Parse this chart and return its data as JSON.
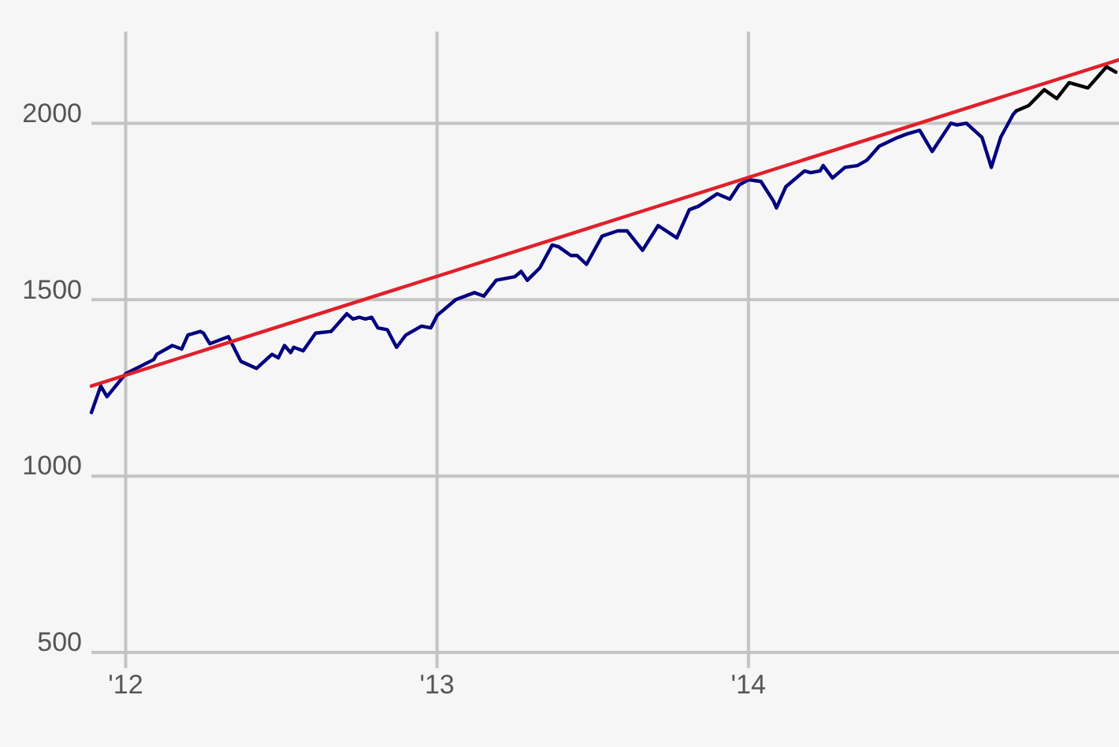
{
  "chart_data": {
    "type": "line",
    "grid": true,
    "xlim": [
      2011.89,
      2015.19
    ],
    "ylim": [
      500,
      2260
    ],
    "xticks": [
      {
        "value": 2012,
        "label": "'12"
      },
      {
        "value": 2013,
        "label": "'13"
      },
      {
        "value": 2014,
        "label": "'14"
      }
    ],
    "yticks": [
      500,
      1000,
      1500,
      2000
    ],
    "series": [
      {
        "color": "#000080",
        "x": [
          2011.89,
          2011.92,
          2011.94,
          2012.0,
          2012.09,
          2012.1,
          2012.15,
          2012.18,
          2012.2,
          2012.24,
          2012.25,
          2012.27,
          2012.33,
          2012.37,
          2012.42,
          2012.47,
          2012.49,
          2012.51,
          2012.53,
          2012.54,
          2012.57,
          2012.61,
          2012.66,
          2012.67,
          2012.71,
          2012.73,
          2012.75,
          2012.77,
          2012.79,
          2012.81,
          2012.84,
          2012.87,
          2012.9,
          2012.93,
          2012.95,
          2012.98,
          2013.0,
          2013.06,
          2013.12,
          2013.15,
          2013.19,
          2013.22,
          2013.25,
          2013.27,
          2013.29,
          2013.33,
          2013.37,
          2013.39,
          2013.43,
          2013.45,
          2013.48,
          2013.53,
          2013.58,
          2013.61,
          2013.66,
          2013.71,
          2013.77,
          2013.81,
          2013.84,
          2013.9,
          2013.94,
          2013.97,
          2014.0,
          2014.04,
          2014.08,
          2014.09,
          2014.12,
          2014.18,
          2014.2,
          2014.23,
          2014.24,
          2014.27,
          2014.31,
          2014.35,
          2014.38,
          2014.42,
          2014.48,
          2014.51,
          2014.55,
          2014.59,
          2014.65,
          2014.67,
          2014.7,
          2014.75,
          2014.78,
          2014.81,
          2014.85,
          2014.86
        ],
        "values": [
          1180,
          1255,
          1225,
          1290,
          1330,
          1345,
          1370,
          1360,
          1400,
          1410,
          1405,
          1375,
          1395,
          1325,
          1305,
          1345,
          1335,
          1370,
          1350,
          1365,
          1355,
          1405,
          1410,
          1420,
          1460,
          1445,
          1450,
          1445,
          1450,
          1420,
          1415,
          1365,
          1400,
          1415,
          1425,
          1420,
          1455,
          1500,
          1520,
          1510,
          1555,
          1560,
          1565,
          1580,
          1555,
          1590,
          1655,
          1650,
          1625,
          1625,
          1600,
          1680,
          1695,
          1695,
          1640,
          1710,
          1675,
          1755,
          1765,
          1800,
          1785,
          1825,
          1840,
          1835,
          1780,
          1760,
          1820,
          1865,
          1860,
          1865,
          1880,
          1845,
          1875,
          1880,
          1895,
          1935,
          1960,
          1970,
          1980,
          1920,
          2000,
          1995,
          2000,
          1960,
          1875,
          1960,
          2025,
          2035
        ]
      },
      {
        "color": "#000000",
        "x": [
          2014.86,
          2014.9,
          2014.95,
          2014.99,
          2015.03,
          2015.09,
          2015.13,
          2015.15,
          2015.18
        ],
        "values": [
          2035,
          2050,
          2095,
          2070,
          2115,
          2100,
          2140,
          2160,
          2145
        ]
      },
      {
        "color": "#e0202a",
        "x": [
          2011.89,
          2015.19
        ],
        "values": [
          1255,
          2180
        ]
      }
    ]
  }
}
